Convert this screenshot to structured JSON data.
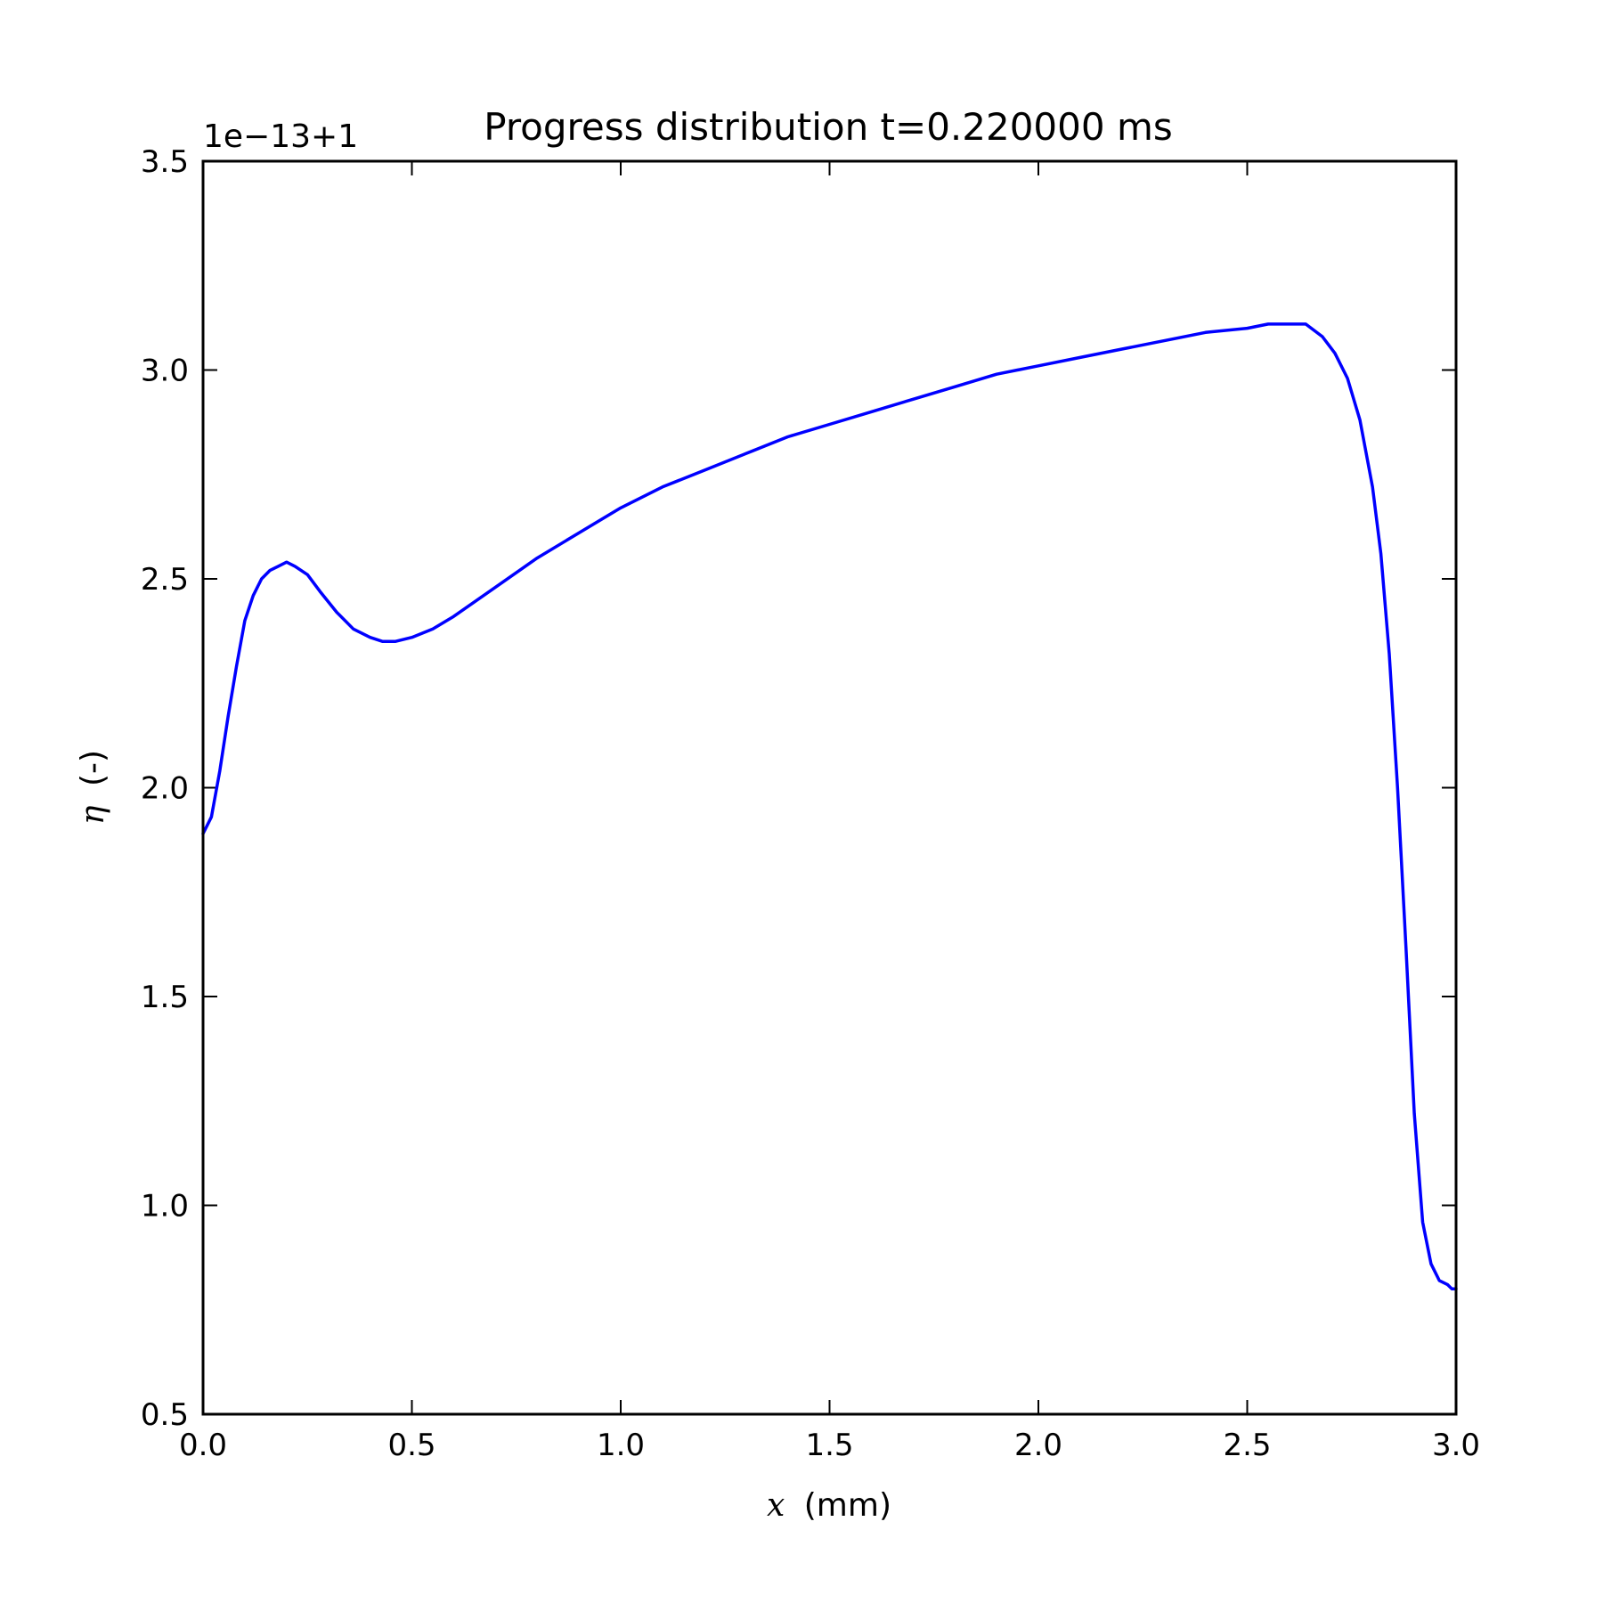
{
  "chart_data": {
    "type": "line",
    "title": "Progress distribution t=0.220000 ms",
    "xlabel_symbol": "x",
    "xlabel_unit": "(mm)",
    "ylabel_symbol": "η",
    "ylabel_unit": "(-)",
    "y_offset_label": "1e−13+1",
    "xlim": [
      0.0,
      3.0
    ],
    "ylim": [
      0.5,
      3.5
    ],
    "xticks": [
      "0.0",
      "0.5",
      "1.0",
      "1.5",
      "2.0",
      "2.5",
      "3.0"
    ],
    "yticks": [
      "0.5",
      "1.0",
      "1.5",
      "2.0",
      "2.5",
      "3.0",
      "3.5"
    ],
    "grid": false,
    "line_color": "#0000ff",
    "series": [
      {
        "x": [
          0.0,
          0.02,
          0.04,
          0.06,
          0.08,
          0.1,
          0.12,
          0.14,
          0.16,
          0.18,
          0.2,
          0.22,
          0.25,
          0.28,
          0.32,
          0.36,
          0.4,
          0.43,
          0.46,
          0.5,
          0.55,
          0.6,
          0.7,
          0.8,
          0.9,
          1.0,
          1.1,
          1.2,
          1.3,
          1.4,
          1.5,
          1.6,
          1.7,
          1.8,
          1.9,
          2.0,
          2.1,
          2.2,
          2.3,
          2.4,
          2.5,
          2.55,
          2.6,
          2.64,
          2.68,
          2.71,
          2.74,
          2.77,
          2.8,
          2.82,
          2.84,
          2.86,
          2.88,
          2.9,
          2.92,
          2.94,
          2.96,
          2.98,
          2.99,
          3.0
        ],
        "y": [
          1.89,
          1.93,
          2.04,
          2.17,
          2.29,
          2.4,
          2.46,
          2.5,
          2.52,
          2.53,
          2.54,
          2.53,
          2.51,
          2.47,
          2.42,
          2.38,
          2.36,
          2.35,
          2.35,
          2.36,
          2.38,
          2.41,
          2.48,
          2.55,
          2.61,
          2.67,
          2.72,
          2.76,
          2.8,
          2.84,
          2.87,
          2.9,
          2.93,
          2.96,
          2.99,
          3.01,
          3.03,
          3.05,
          3.07,
          3.09,
          3.1,
          3.11,
          3.11,
          3.11,
          3.08,
          3.04,
          2.98,
          2.88,
          2.72,
          2.56,
          2.32,
          2.0,
          1.62,
          1.22,
          0.96,
          0.86,
          0.82,
          0.81,
          0.8,
          0.8
        ]
      }
    ]
  }
}
